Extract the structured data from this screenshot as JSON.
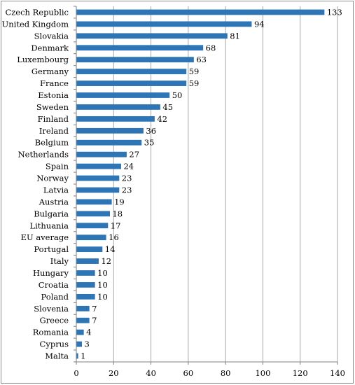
{
  "chart_data": {
    "type": "bar",
    "orientation": "horizontal",
    "categories": [
      "Czech Republic",
      "United Kingdom",
      "Slovakia",
      "Denmark",
      "Luxembourg",
      "Germany",
      "France",
      "Estonia",
      "Sweden",
      "Finland",
      "Ireland",
      "Belgium",
      "Netherlands",
      "Spain",
      "Norway",
      "Latvia",
      "Austria",
      "Bulgaria",
      "Lithuania",
      "EU average",
      "Portugal",
      "Italy",
      "Hungary",
      "Croatia",
      "Poland",
      "Slovenia",
      "Greece",
      "Romania",
      "Cyprus",
      "Malta"
    ],
    "values": [
      133,
      94,
      81,
      68,
      63,
      59,
      59,
      50,
      45,
      42,
      36,
      35,
      27,
      24,
      23,
      23,
      19,
      18,
      17,
      16,
      14,
      12,
      10,
      10,
      10,
      7,
      7,
      4,
      3,
      1
    ],
    "xlim": [
      0,
      140
    ],
    "xticks": [
      0,
      20,
      40,
      60,
      80,
      100,
      120,
      140
    ],
    "grid": "vertical",
    "legend": "none",
    "colors": {
      "bar": "#2e75b6",
      "grid": "#a6a6a6",
      "axis": "#7f7f7f"
    }
  }
}
